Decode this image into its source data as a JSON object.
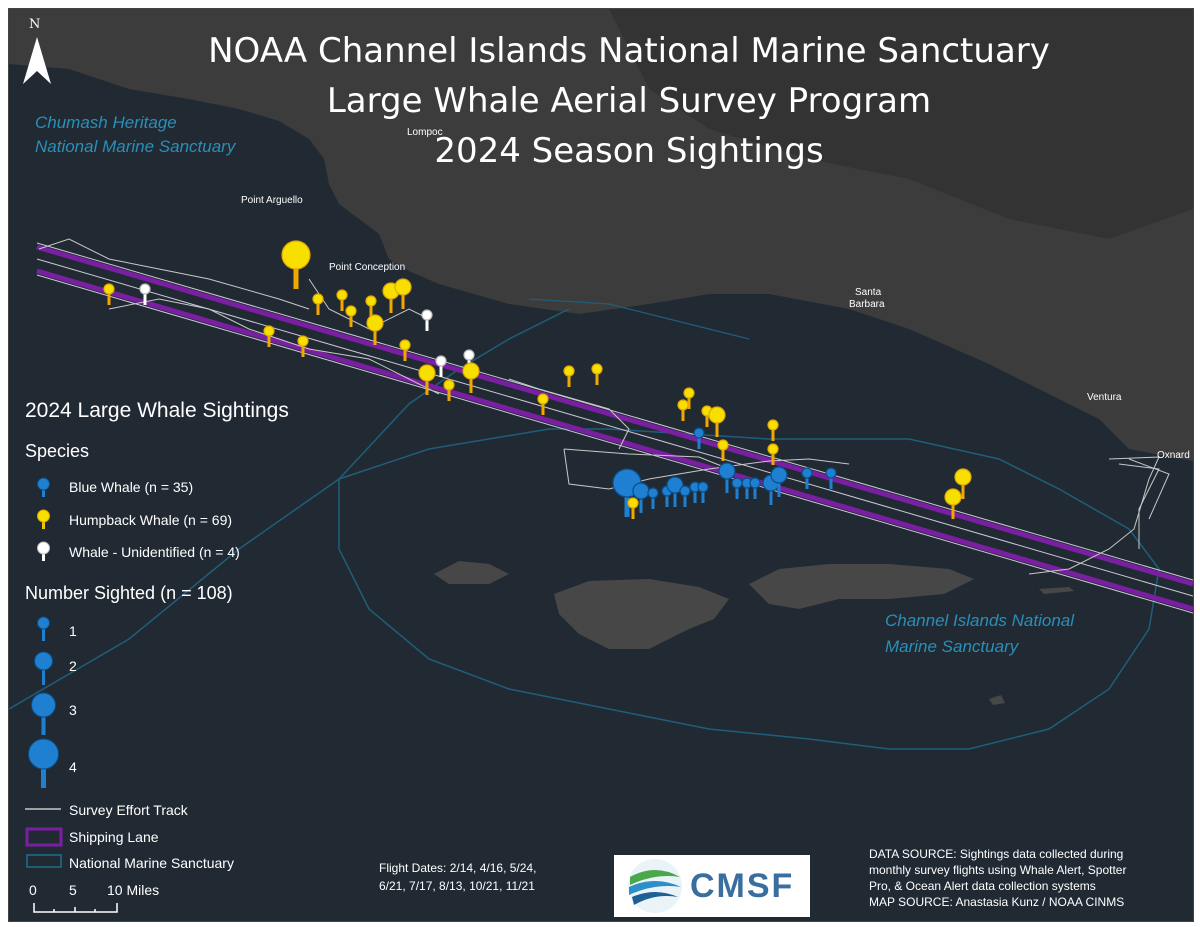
{
  "title": {
    "line1": "NOAA Channel Islands National Marine Sanctuary",
    "line2": "Large Whale Aerial Survey Program",
    "line3": "2024 Season Sightings"
  },
  "north_arrow": {
    "label": "N"
  },
  "places": {
    "lompoc": "Lompoc",
    "point_arguello": "Point Arguello",
    "point_conception": "Point Conception",
    "santa_barbara_1": "Santa",
    "santa_barbara_2": "Barbara",
    "ventura": "Ventura",
    "oxnard": "Oxnard"
  },
  "sanctuary_labels": {
    "chumash_1": "Chumash Heritage",
    "chumash_2": "National Marine Sanctuary",
    "cinms_1": "Channel Islands National",
    "cinms_2": "Marine Sanctuary"
  },
  "legend": {
    "title": "2024 Large Whale Sightings",
    "species_heading": "Species",
    "species": [
      {
        "label": "Blue Whale (n = 35)",
        "color": "#1f7fd0"
      },
      {
        "label": "Humpback Whale (n =  69)",
        "color": "#f2c200"
      },
      {
        "label": "Whale - Unidentified (n = 4)",
        "color": "#ffffff"
      }
    ],
    "number_heading": "Number Sighted (n = 108)",
    "sizes": [
      "1",
      "2",
      "3",
      "4"
    ],
    "survey_track": "Survey Effort Track",
    "shipping_lane": "Shipping Lane",
    "sanctuary": "National Marine Sanctuary",
    "scale": {
      "zero": "0",
      "five": "5",
      "ten": "10 Miles"
    }
  },
  "colors": {
    "ocean": "#212a33",
    "land": "#3c3c3c",
    "island": "#474747",
    "shipping_lane": "#7a1fa2",
    "sanctuary_line": "#1f5e7a",
    "track": "#c8c8c8"
  },
  "flight_dates": {
    "line1": "Flight Dates: 2/14, 4/16, 5/24,",
    "line2": "6/21, 7/17, 8/13, 10/21, 11/21"
  },
  "logo": {
    "text": "CMSF"
  },
  "sources": {
    "line1": "DATA SOURCE: Sightings data collected during",
    "line2": "monthly survey flights using Whale Alert, Spotter",
    "line3": "Pro, & Ocean Alert data collection systems",
    "line4": "MAP SOURCE: Anastasia Kunz / NOAA CINMS"
  }
}
